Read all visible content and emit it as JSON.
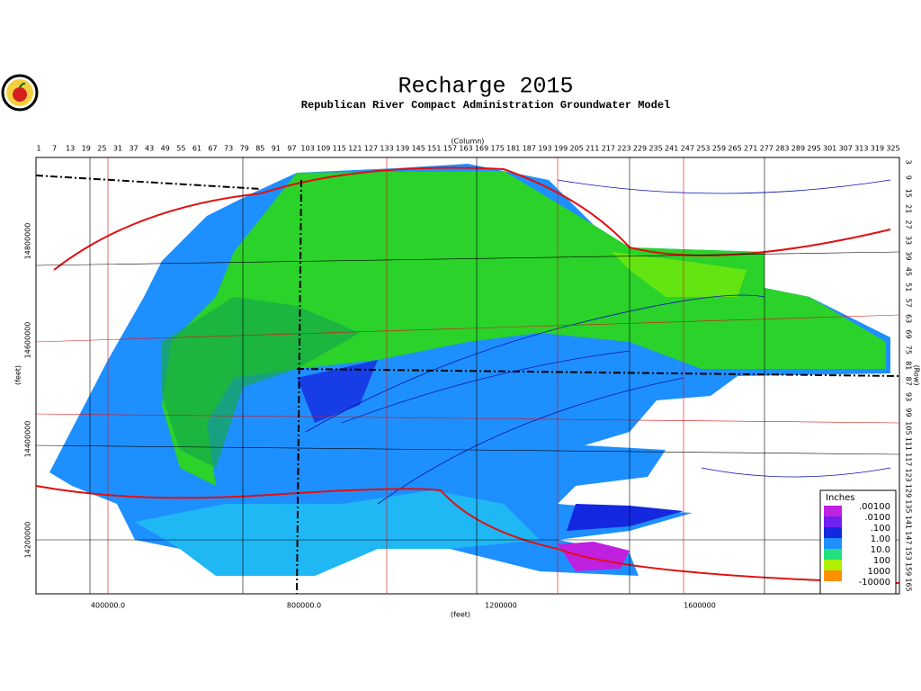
{
  "header": {
    "title": "Recharge  2015",
    "subtitle": "Republican  River  Compact  Administration  Groundwater  Model"
  },
  "axes": {
    "column_label": "(Column)",
    "columns": [
      1,
      7,
      13,
      19,
      25,
      31,
      37,
      43,
      49,
      55,
      61,
      67,
      73,
      79,
      85,
      91,
      97,
      103,
      109,
      115,
      121,
      127,
      133,
      139,
      145,
      151,
      157,
      163,
      169,
      175,
      181,
      187,
      193,
      199,
      205,
      211,
      217,
      223,
      229,
      235,
      241,
      247,
      253,
      259,
      265,
      271,
      277,
      283,
      289,
      295,
      301,
      307,
      313,
      319,
      325
    ],
    "row_label": "(Row)",
    "rows": [
      3,
      9,
      15,
      21,
      27,
      33,
      39,
      45,
      51,
      57,
      63,
      69,
      75,
      81,
      87,
      93,
      99,
      105,
      111,
      117,
      123,
      129,
      135,
      141,
      147,
      153,
      159,
      165
    ],
    "x_label": "(feet)",
    "x_ticks": [
      "400000.0",
      "800000.0",
      "1200000",
      "1600000"
    ],
    "y_label": "(feet)",
    "y_ticks": [
      "14800000",
      "14600000",
      "14400000",
      "14200000"
    ]
  },
  "legend": {
    "title": "Inches",
    "labels": [
      ".00100",
      ".0100",
      ".100",
      "1.00",
      "10.0",
      "100",
      "1000",
      "-10000"
    ]
  }
}
